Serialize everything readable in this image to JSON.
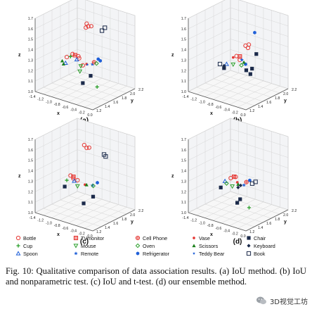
{
  "chart_data": [
    {
      "type": "scatter",
      "subplot_label": "(a)",
      "zlabel": "z",
      "xlabel": "x",
      "ylabel": "y",
      "x_ticks": [
        "-1.4",
        "-1.2",
        "-1.0",
        "-0.8",
        "-0.6",
        "-0.4",
        "-0.2",
        "0.0"
      ],
      "y_ticks": [
        "1.2",
        "1.4",
        "1.6",
        "1.8",
        "2.0",
        "2.2"
      ],
      "z_ticks": [
        "1.0",
        "1.1",
        "1.2",
        "1.3",
        "1.4",
        "1.5",
        "1.6",
        "1.7"
      ],
      "xlim": [
        -1.4,
        0.0
      ],
      "ylim": [
        1.2,
        2.2
      ],
      "zlim": [
        1.0,
        1.7
      ],
      "series": [
        {
          "name": "Bottle",
          "points": [
            [
              -0.9,
              1.6,
              1.34
            ],
            [
              -0.78,
              1.62,
              1.33
            ],
            [
              -0.74,
              1.6,
              1.32
            ],
            [
              -1.02,
              1.58,
              1.3
            ],
            [
              -0.6,
              1.55,
              1.28
            ],
            [
              -0.66,
              1.7,
              1.64
            ],
            [
              -0.62,
              1.7,
              1.62
            ],
            [
              -0.55,
              1.7,
              1.63
            ],
            [
              -0.68,
              1.7,
              1.6
            ]
          ]
        },
        {
          "name": "Cup",
          "points": [
            [
              -0.95,
              1.6,
              1.31
            ],
            [
              -0.15,
              1.45,
              1.15
            ]
          ]
        },
        {
          "name": "Spoon",
          "points": [
            [
              -0.8,
              1.6,
              1.3
            ],
            [
              -1.05,
              1.58,
              1.24
            ]
          ]
        },
        {
          "name": "TVmonitor",
          "points": [
            [
              -0.86,
              1.62,
              1.33
            ]
          ]
        },
        {
          "name": "Mouse",
          "points": [
            [
              -0.7,
              1.6,
              1.25
            ],
            [
              -0.62,
              1.5,
              1.23
            ]
          ]
        },
        {
          "name": "Remote",
          "points": [
            [
              -0.52,
              1.7,
              1.27
            ]
          ]
        },
        {
          "name": "Cell Phone",
          "points": [
            [
              -0.46,
              1.68,
              1.3
            ]
          ]
        },
        {
          "name": "Oven",
          "points": [
            [
              -0.42,
              1.7,
              1.29
            ]
          ]
        },
        {
          "name": "Refrigerator",
          "points": [
            [
              -0.4,
              1.72,
              1.33
            ],
            [
              -0.35,
              1.72,
              1.32
            ]
          ]
        },
        {
          "name": "Vase",
          "points": [
            [
              -0.58,
              1.62,
              1.28
            ]
          ]
        },
        {
          "name": "Scissors",
          "points": [
            [
              -1.1,
              1.55,
              1.26
            ],
            [
              -1.08,
              1.56,
              1.23
            ]
          ]
        },
        {
          "name": "Teddy Bear",
          "points": [
            [
              -0.52,
              1.58,
              1.29
            ]
          ]
        },
        {
          "name": "Chair",
          "points": [
            [
              -0.6,
              1.55,
              1.11
            ],
            [
              -0.42,
              1.56,
              1.2
            ]
          ]
        },
        {
          "name": "Keyboard",
          "points": []
        },
        {
          "name": "Book",
          "points": [
            [
              -0.35,
              1.76,
              1.6
            ],
            [
              -0.3,
              1.78,
              1.63
            ]
          ]
        }
      ]
    },
    {
      "type": "scatter",
      "subplot_label": "(b)",
      "zlabel": "z",
      "xlabel": "x",
      "ylabel": "y",
      "x_ticks": [
        "-1.4",
        "-1.2",
        "-1.0",
        "-0.8",
        "-0.6",
        "-0.4",
        "-0.2",
        "0.0"
      ],
      "y_ticks": [
        "1.2",
        "1.4",
        "1.6",
        "1.8",
        "2.0",
        "2.2"
      ],
      "z_ticks": [
        "1.0",
        "1.1",
        "1.2",
        "1.3",
        "1.4",
        "1.5",
        "1.6",
        "1.7"
      ],
      "xlim": [
        -1.4,
        0.0
      ],
      "ylim": [
        1.2,
        2.2
      ],
      "zlim": [
        1.0,
        1.7
      ],
      "series": [
        {
          "name": "Bottle",
          "points": [
            [
              -0.68,
              1.64,
              1.34
            ],
            [
              -0.58,
              1.62,
              1.32
            ],
            [
              -0.42,
              1.6,
              1.48
            ],
            [
              -0.38,
              1.62,
              1.46
            ],
            [
              -0.34,
              1.6,
              1.5
            ]
          ]
        },
        {
          "name": "Cup",
          "points": []
        },
        {
          "name": "Spoon",
          "points": [
            [
              -0.9,
              1.62,
              1.24
            ]
          ]
        },
        {
          "name": "TVmonitor",
          "points": [
            [
              -0.62,
              1.66,
              1.34
            ]
          ]
        },
        {
          "name": "Mouse",
          "points": [
            [
              -0.7,
              1.58,
              1.27
            ]
          ]
        },
        {
          "name": "Remote",
          "points": [
            [
              -0.55,
              1.64,
              1.32
            ]
          ]
        },
        {
          "name": "Cell Phone",
          "points": []
        },
        {
          "name": "Oven",
          "points": [
            [
              -0.52,
              1.6,
              1.28
            ]
          ]
        },
        {
          "name": "Refrigerator",
          "points": [
            [
              -0.3,
              1.7,
              1.6
            ],
            [
              -0.46,
              1.64,
              1.29
            ]
          ]
        },
        {
          "name": "Vase",
          "points": [
            [
              -0.72,
              1.6,
              1.33
            ]
          ]
        },
        {
          "name": "Scissors",
          "points": [
            [
              -0.48,
              1.62,
              1.31
            ]
          ]
        },
        {
          "name": "Teddy Bear",
          "points": []
        },
        {
          "name": "Chair",
          "points": [
            [
              -0.3,
              1.5,
              1.28
            ],
            [
              -0.22,
              1.52,
              1.25
            ],
            [
              -0.2,
              1.54,
              1.3
            ],
            [
              -0.88,
              1.54,
              1.22
            ],
            [
              -0.26,
              1.7,
              1.4
            ]
          ]
        },
        {
          "name": "Keyboard",
          "points": [
            [
              -0.92,
              1.58,
              1.23
            ]
          ]
        },
        {
          "name": "Book",
          "points": [
            [
              -1.0,
              1.56,
              1.24
            ]
          ]
        }
      ]
    },
    {
      "type": "scatter",
      "subplot_label": "(c)",
      "zlabel": "z",
      "xlabel": "x",
      "ylabel": "y",
      "x_ticks": [
        "-1.4",
        "-1.2",
        "-1.0",
        "-0.8",
        "-0.6",
        "-0.4",
        "-0.2",
        "0.0"
      ],
      "y_ticks": [
        "1.2",
        "1.4",
        "1.6",
        "1.8",
        "2.0",
        "2.2"
      ],
      "z_ticks": [
        "1.0",
        "1.1",
        "1.2",
        "1.3",
        "1.4",
        "1.5",
        "1.6",
        "1.7"
      ],
      "xlim": [
        -1.4,
        0.0
      ],
      "ylim": [
        1.2,
        2.2
      ],
      "zlim": [
        1.0,
        1.7
      ],
      "series": [
        {
          "name": "Bottle",
          "points": [
            [
              -0.95,
              1.6,
              1.33
            ],
            [
              -0.88,
              1.6,
              1.31
            ],
            [
              -0.8,
              1.62,
              1.3
            ],
            [
              -0.72,
              1.7,
              1.63
            ],
            [
              -0.66,
              1.7,
              1.61
            ],
            [
              -0.6,
              1.7,
              1.62
            ]
          ]
        },
        {
          "name": "Cup",
          "points": [
            [
              -1.02,
              1.58,
              1.28
            ]
          ]
        },
        {
          "name": "Spoon",
          "points": [
            [
              -0.86,
              1.6,
              1.29
            ]
          ]
        },
        {
          "name": "TVmonitor",
          "points": [
            [
              -0.9,
              1.62,
              1.32
            ]
          ]
        },
        {
          "name": "Mouse",
          "points": [
            [
              -0.78,
              1.6,
              1.25
            ]
          ]
        },
        {
          "name": "Remote",
          "points": [
            [
              -0.52,
              1.7,
              1.27
            ]
          ]
        },
        {
          "name": "Cell Phone",
          "points": []
        },
        {
          "name": "Oven",
          "points": [
            [
              -0.46,
              1.66,
              1.28
            ]
          ]
        },
        {
          "name": "Refrigerator",
          "points": [
            [
              -0.4,
              1.7,
              1.31
            ]
          ]
        },
        {
          "name": "Vase",
          "points": [
            [
              -0.62,
              1.62,
              1.28
            ]
          ]
        },
        {
          "name": "Scissors",
          "points": [
            [
              -0.56,
              1.6,
              1.29
            ]
          ]
        },
        {
          "name": "Teddy Bear",
          "points": []
        },
        {
          "name": "Chair",
          "points": [
            [
              -0.58,
              1.55,
              1.12
            ],
            [
              -1.05,
              1.56,
              1.22
            ],
            [
              -0.36,
              1.56,
              1.21
            ]
          ]
        },
        {
          "name": "Keyboard",
          "points": []
        },
        {
          "name": "Book",
          "points": [
            [
              -0.3,
              1.76,
              1.58
            ],
            [
              -0.28,
              1.78,
              1.56
            ]
          ]
        }
      ]
    },
    {
      "type": "scatter",
      "subplot_label": "(d)",
      "zlabel": "z",
      "xlabel": "x",
      "ylabel": "y",
      "x_ticks": [
        "-1.4",
        "-1.2",
        "-1.0",
        "-0.8",
        "-0.6",
        "-0.4",
        "-0.2",
        "0.0"
      ],
      "y_ticks": [
        "1.2",
        "1.4",
        "1.6",
        "1.8",
        "2.0",
        "2.2"
      ],
      "z_ticks": [
        "1.0",
        "1.1",
        "1.2",
        "1.3",
        "1.4",
        "1.5",
        "1.6",
        "1.7"
      ],
      "xlim": [
        -1.4,
        0.0
      ],
      "ylim": [
        1.2,
        2.2
      ],
      "zlim": [
        1.0,
        1.7
      ],
      "series": [
        {
          "name": "Bottle",
          "points": [
            [
              -0.8,
              1.62,
              1.32
            ],
            [
              -0.7,
              1.64,
              1.34
            ]
          ]
        },
        {
          "name": "Cup",
          "points": [
            [
              -0.18,
              1.45,
              1.15
            ]
          ]
        },
        {
          "name": "Spoon",
          "points": [
            [
              -0.92,
              1.6,
              1.28
            ]
          ]
        },
        {
          "name": "TVmonitor",
          "points": [
            [
              -0.76,
              1.66,
              1.33
            ]
          ]
        },
        {
          "name": "Mouse",
          "points": [
            [
              -0.72,
              1.58,
              1.26
            ]
          ]
        },
        {
          "name": "Remote",
          "points": [
            [
              -0.52,
              1.66,
              1.28
            ]
          ]
        },
        {
          "name": "Cell Phone",
          "points": [
            [
              -0.48,
              1.68,
              1.31
            ]
          ]
        },
        {
          "name": "Oven",
          "points": [
            [
              -0.86,
              1.58,
              1.27
            ]
          ]
        },
        {
          "name": "Refrigerator",
          "points": [
            [
              -0.42,
              1.7,
              1.33
            ]
          ]
        },
        {
          "name": "Vase",
          "points": [
            [
              -0.64,
              1.62,
              1.3
            ]
          ]
        },
        {
          "name": "Scissors",
          "points": [
            [
              -0.6,
              1.6,
              1.29
            ]
          ]
        },
        {
          "name": "Teddy Bear",
          "points": []
        },
        {
          "name": "Chair",
          "points": [
            [
              -0.56,
              1.54,
              1.13
            ],
            [
              -0.5,
              1.55,
              1.17
            ],
            [
              -0.98,
              1.56,
              1.22
            ]
          ]
        },
        {
          "name": "Keyboard",
          "points": [
            [
              -0.6,
              1.6,
              1.26
            ],
            [
              -0.56,
              1.62,
              1.28
            ]
          ]
        },
        {
          "name": "Book",
          "points": [
            [
              -0.32,
              1.74,
              1.32
            ],
            [
              -0.38,
              1.72,
              1.3
            ]
          ]
        }
      ]
    }
  ],
  "legend": [
    {
      "name": "Bottle",
      "marker": "circle-open",
      "color": "#e53935"
    },
    {
      "name": "Cup",
      "marker": "plus",
      "color": "#2ca02c"
    },
    {
      "name": "Spoon",
      "marker": "triangle-up-open",
      "color": "#1f5fd8"
    },
    {
      "name": "TVmonitor",
      "marker": "square-hatched",
      "color": "#e53935"
    },
    {
      "name": "Mouse",
      "marker": "triangle-down-open",
      "color": "#2ca02c"
    },
    {
      "name": "Remote",
      "marker": "star",
      "color": "#1f5fd8"
    },
    {
      "name": "Cell Phone",
      "marker": "circle-hatched",
      "color": "#e53935"
    },
    {
      "name": "Oven",
      "marker": "diamond-open",
      "color": "#2ca02c"
    },
    {
      "name": "Refrigerator",
      "marker": "hexagon-filled",
      "color": "#1f5fd8"
    },
    {
      "name": "Vase",
      "marker": "dot",
      "color": "#e53935"
    },
    {
      "name": "Scissors",
      "marker": "triangle-up-filled",
      "color": "#1a7f1a"
    },
    {
      "name": "Teddy Bear",
      "marker": "star-small",
      "color": "#1f5fd8"
    },
    {
      "name": "Chair",
      "marker": "square-filled",
      "color": "#1b2a4a"
    },
    {
      "name": "Keyboard",
      "marker": "diamond-filled",
      "color": "#1b2a4a"
    },
    {
      "name": "Book",
      "marker": "square-open",
      "color": "#1b2a4a"
    }
  ],
  "caption": "Fig. 10: Qualitative comparison of data association results. (a) IoU method. (b) IoU and nonparametric test. (c) IoU and t-test. (d) our ensemble method.",
  "watermark": {
    "text": "3D视觉工坊",
    "icon": "wechat-icon"
  }
}
